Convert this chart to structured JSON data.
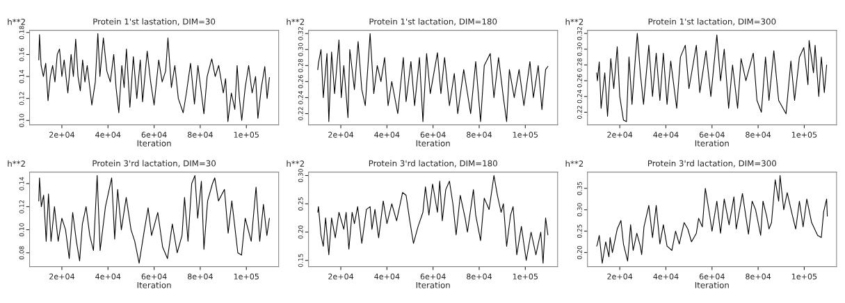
{
  "chart_data": [
    {
      "type": "line",
      "title": "Protein 1'st lastation, DIM=30",
      "ylabel": "h**2",
      "xlabel": "Iteration",
      "color": "#000000",
      "grid": false,
      "legend": false,
      "x": [
        10000,
        10300,
        11000,
        12000,
        13000,
        14000,
        15000,
        16000,
        17000,
        18000,
        19000,
        20000,
        21000,
        22600,
        24000,
        25000,
        26000,
        27000,
        28000,
        29000,
        30000,
        31000,
        33000,
        34500,
        35600,
        36500,
        38000,
        39500,
        41000,
        42500,
        43500,
        44700,
        46000,
        47000,
        48000,
        49500,
        51000,
        52500,
        54000,
        55000,
        57000,
        58500,
        60000,
        62000,
        63500,
        65000,
        66000,
        67500,
        69000,
        70500,
        72600,
        74000,
        75800,
        77500,
        79000,
        80500,
        81600,
        83000,
        85000,
        86500,
        88000,
        90000,
        91000,
        92000,
        93500,
        95000,
        96000,
        97000,
        98000,
        99500,
        101000,
        102500,
        104000,
        105000,
        106500,
        108000,
        109000,
        110000
      ],
      "values": [
        0.155,
        0.178,
        0.15,
        0.14,
        0.152,
        0.118,
        0.14,
        0.15,
        0.135,
        0.16,
        0.165,
        0.14,
        0.155,
        0.125,
        0.16,
        0.14,
        0.174,
        0.14,
        0.127,
        0.155,
        0.135,
        0.15,
        0.114,
        0.135,
        0.179,
        0.14,
        0.175,
        0.145,
        0.135,
        0.16,
        0.13,
        0.107,
        0.15,
        0.13,
        0.165,
        0.112,
        0.158,
        0.12,
        0.155,
        0.117,
        0.163,
        0.135,
        0.114,
        0.155,
        0.135,
        0.145,
        0.175,
        0.13,
        0.15,
        0.12,
        0.107,
        0.125,
        0.152,
        0.115,
        0.15,
        0.125,
        0.106,
        0.14,
        0.156,
        0.14,
        0.15,
        0.125,
        0.138,
        0.099,
        0.125,
        0.11,
        0.15,
        0.12,
        0.1,
        0.13,
        0.15,
        0.125,
        0.14,
        0.102,
        0.13,
        0.149,
        0.12,
        0.139
      ],
      "xlim": [
        6000,
        114000
      ],
      "xticks": [
        {
          "value": 20000,
          "label": "2e+04"
        },
        {
          "value": 40000,
          "label": "4e+04"
        },
        {
          "value": 60000,
          "label": "6e+04"
        },
        {
          "value": 80000,
          "label": "8e+04"
        },
        {
          "value": 100000,
          "label": "1e+05"
        }
      ],
      "ylim": [
        0.096,
        0.182
      ],
      "yticks": [
        {
          "value": 0.1,
          "label": "0.10"
        },
        {
          "value": 0.12,
          "label": "0.12"
        },
        {
          "value": 0.14,
          "label": "0.14"
        },
        {
          "value": 0.16,
          "label": "0.16"
        },
        {
          "value": 0.18,
          "label": "0.18"
        }
      ]
    },
    {
      "type": "line",
      "title": "Protein 1'st lactation, DIM=180",
      "ylabel": "h**2",
      "xlabel": "Iteration",
      "color": "#000000",
      "grid": false,
      "legend": false,
      "x": [
        10000,
        10300,
        11400,
        12400,
        14000,
        14800,
        16000,
        17300,
        19200,
        20200,
        21300,
        23100,
        23900,
        25900,
        27500,
        29100,
        30600,
        32700,
        34300,
        35800,
        37400,
        39000,
        40500,
        42100,
        44700,
        47100,
        48300,
        50400,
        52000,
        54100,
        55600,
        57200,
        58800,
        61900,
        63400,
        65000,
        67100,
        69200,
        70700,
        73300,
        76300,
        78500,
        80600,
        82200,
        84800,
        86400,
        88400,
        90500,
        91900,
        93100,
        95200,
        97300,
        99400,
        102000,
        103500,
        105600,
        107200,
        108800,
        109800
      ],
      "values": [
        0.275,
        0.283,
        0.3,
        0.24,
        0.295,
        0.21,
        0.297,
        0.245,
        0.312,
        0.24,
        0.28,
        0.215,
        0.3,
        0.25,
        0.31,
        0.25,
        0.23,
        0.32,
        0.245,
        0.28,
        0.26,
        0.29,
        0.23,
        0.26,
        0.22,
        0.29,
        0.235,
        0.285,
        0.23,
        0.29,
        0.21,
        0.295,
        0.245,
        0.296,
        0.245,
        0.29,
        0.23,
        0.27,
        0.22,
        0.275,
        0.22,
        0.285,
        0.21,
        0.28,
        0.295,
        0.24,
        0.29,
        0.24,
        0.21,
        0.275,
        0.24,
        0.275,
        0.23,
        0.285,
        0.24,
        0.28,
        0.225,
        0.275,
        0.279
      ],
      "xlim": [
        6000,
        114000
      ],
      "xticks": [
        {
          "value": 20000,
          "label": "2e+04"
        },
        {
          "value": 40000,
          "label": "4e+04"
        },
        {
          "value": 60000,
          "label": "6e+04"
        },
        {
          "value": 80000,
          "label": "8e+04"
        },
        {
          "value": 100000,
          "label": "1e+05"
        }
      ],
      "ylim": [
        0.206,
        0.324
      ],
      "yticks": [
        {
          "value": 0.22,
          "label": "0.22"
        },
        {
          "value": 0.24,
          "label": "0.24"
        },
        {
          "value": 0.26,
          "label": "0.26"
        },
        {
          "value": 0.28,
          "label": "0.28"
        },
        {
          "value": 0.3,
          "label": "0.30"
        },
        {
          "value": 0.32,
          "label": "0.32"
        }
      ]
    },
    {
      "type": "line",
      "title": "Protein 1'st lactation, DIM=300",
      "ylabel": "h**2",
      "xlabel": "Iteration",
      "color": "#000000",
      "grid": false,
      "legend": false,
      "x": [
        10000,
        10300,
        11100,
        11900,
        13500,
        14700,
        16100,
        17400,
        18900,
        20000,
        21600,
        22900,
        24000,
        25300,
        26800,
        27600,
        28900,
        30300,
        32600,
        34200,
        35800,
        37400,
        38900,
        40500,
        42100,
        44700,
        46300,
        48400,
        50000,
        53200,
        54700,
        57400,
        59500,
        62100,
        63700,
        65300,
        67200,
        68900,
        71100,
        72600,
        74700,
        77900,
        79500,
        81400,
        83200,
        84700,
        86800,
        88900,
        92100,
        94200,
        95800,
        97900,
        99800,
        101600,
        102100,
        104000,
        104700,
        106300,
        107400,
        108700,
        109700
      ],
      "values": [
        0.27,
        0.26,
        0.284,
        0.225,
        0.27,
        0.215,
        0.288,
        0.25,
        0.303,
        0.24,
        0.21,
        0.208,
        0.29,
        0.23,
        0.29,
        0.32,
        0.27,
        0.23,
        0.305,
        0.24,
        0.295,
        0.235,
        0.295,
        0.23,
        0.285,
        0.225,
        0.29,
        0.305,
        0.25,
        0.305,
        0.245,
        0.298,
        0.24,
        0.318,
        0.26,
        0.3,
        0.225,
        0.28,
        0.225,
        0.288,
        0.26,
        0.295,
        0.235,
        0.22,
        0.29,
        0.235,
        0.298,
        0.235,
        0.218,
        0.285,
        0.235,
        0.29,
        0.302,
        0.255,
        0.311,
        0.27,
        0.305,
        0.24,
        0.29,
        0.245,
        0.28
      ],
      "xlim": [
        6000,
        114000
      ],
      "xticks": [
        {
          "value": 20000,
          "label": "2e+04"
        },
        {
          "value": 40000,
          "label": "4e+04"
        },
        {
          "value": 60000,
          "label": "6e+04"
        },
        {
          "value": 80000,
          "label": "8e+04"
        },
        {
          "value": 100000,
          "label": "1e+05"
        }
      ],
      "ylim": [
        0.204,
        0.324
      ],
      "yticks": [
        {
          "value": 0.22,
          "label": "0.22"
        },
        {
          "value": 0.24,
          "label": "0.24"
        },
        {
          "value": 0.26,
          "label": "0.26"
        },
        {
          "value": 0.28,
          "label": "0.28"
        },
        {
          "value": 0.3,
          "label": "0.30"
        },
        {
          "value": 0.32,
          "label": "0.32"
        }
      ]
    },
    {
      "type": "line",
      "title": "Protein 3'rd lactation, DIM=30",
      "ylabel": "h**2",
      "xlabel": "Iteration",
      "color": "#000000",
      "grid": false,
      "legend": false,
      "x": [
        10000,
        10300,
        11100,
        12100,
        13200,
        14200,
        15300,
        16800,
        18400,
        20000,
        21600,
        23200,
        24700,
        26300,
        27700,
        28900,
        30500,
        32100,
        33700,
        35300,
        36600,
        38900,
        41600,
        42900,
        44200,
        45800,
        47900,
        50000,
        51600,
        53500,
        55800,
        57400,
        58900,
        61600,
        63700,
        65800,
        67900,
        70000,
        72100,
        73200,
        74700,
        76300,
        77700,
        78900,
        80500,
        81600,
        83200,
        85300,
        86300,
        87900,
        90500,
        92100,
        93700,
        96300,
        97900,
        99500,
        102100,
        104200,
        105800,
        107400,
        108900,
        110000
      ],
      "values": [
        0.125,
        0.145,
        0.12,
        0.13,
        0.09,
        0.131,
        0.09,
        0.12,
        0.09,
        0.11,
        0.1,
        0.075,
        0.115,
        0.09,
        0.073,
        0.105,
        0.12,
        0.095,
        0.082,
        0.147,
        0.082,
        0.12,
        0.145,
        0.092,
        0.135,
        0.1,
        0.128,
        0.1,
        0.09,
        0.071,
        0.1,
        0.119,
        0.095,
        0.115,
        0.085,
        0.075,
        0.105,
        0.08,
        0.095,
        0.128,
        0.09,
        0.14,
        0.147,
        0.11,
        0.142,
        0.083,
        0.125,
        0.14,
        0.145,
        0.125,
        0.135,
        0.097,
        0.125,
        0.08,
        0.078,
        0.11,
        0.09,
        0.137,
        0.09,
        0.122,
        0.095,
        0.11
      ],
      "xlim": [
        6000,
        114000
      ],
      "xticks": [
        {
          "value": 20000,
          "label": "2e+04"
        },
        {
          "value": 40000,
          "label": "4e+04"
        },
        {
          "value": 60000,
          "label": "6e+04"
        },
        {
          "value": 80000,
          "label": "8e+04"
        },
        {
          "value": 100000,
          "label": "1e+05"
        }
      ],
      "ylim": [
        0.068,
        0.15
      ],
      "yticks": [
        {
          "value": 0.08,
          "label": "0.08"
        },
        {
          "value": 0.1,
          "label": "0.10"
        },
        {
          "value": 0.12,
          "label": "0.12"
        },
        {
          "value": 0.14,
          "label": "0.14"
        }
      ]
    },
    {
      "type": "line",
      "title": "Protein 3'rd lactation, DIM=180",
      "ylabel": "h**2",
      "xlabel": "Iteration",
      "color": "#000000",
      "grid": false,
      "legend": false,
      "x": [
        10000,
        10300,
        11400,
        12400,
        13400,
        14800,
        16000,
        17600,
        19200,
        21300,
        22300,
        23500,
        24900,
        25900,
        27300,
        29100,
        31100,
        32700,
        33500,
        34800,
        36400,
        38400,
        40000,
        42100,
        44200,
        46800,
        48300,
        49900,
        51500,
        53500,
        55600,
        56700,
        58200,
        59800,
        61900,
        62900,
        64000,
        65500,
        67100,
        68600,
        70000,
        71800,
        73900,
        74900,
        77500,
        78500,
        80600,
        82200,
        84300,
        86400,
        87900,
        89500,
        90500,
        91900,
        93600,
        94700,
        96300,
        98300,
        100400,
        102500,
        104600,
        106700,
        107700,
        108800,
        109800
      ],
      "values": [
        0.235,
        0.245,
        0.195,
        0.175,
        0.225,
        0.16,
        0.225,
        0.19,
        0.235,
        0.205,
        0.235,
        0.17,
        0.235,
        0.215,
        0.245,
        0.18,
        0.24,
        0.245,
        0.205,
        0.24,
        0.19,
        0.255,
        0.215,
        0.25,
        0.22,
        0.27,
        0.265,
        0.22,
        0.18,
        0.21,
        0.235,
        0.28,
        0.23,
        0.285,
        0.235,
        0.29,
        0.22,
        0.275,
        0.29,
        0.25,
        0.195,
        0.265,
        0.225,
        0.2,
        0.275,
        0.23,
        0.185,
        0.26,
        0.24,
        0.3,
        0.265,
        0.235,
        0.25,
        0.175,
        0.23,
        0.245,
        0.16,
        0.21,
        0.15,
        0.2,
        0.16,
        0.2,
        0.145,
        0.225,
        0.195
      ],
      "xlim": [
        6000,
        114000
      ],
      "xticks": [
        {
          "value": 20000,
          "label": "2e+04"
        },
        {
          "value": 40000,
          "label": "4e+04"
        },
        {
          "value": 60000,
          "label": "6e+04"
        },
        {
          "value": 80000,
          "label": "8e+04"
        },
        {
          "value": 100000,
          "label": "1e+05"
        }
      ],
      "ylim": [
        0.139,
        0.306
      ],
      "yticks": [
        {
          "value": 0.15,
          "label": "0.15"
        },
        {
          "value": 0.2,
          "label": "0.20"
        },
        {
          "value": 0.25,
          "label": "0.25"
        },
        {
          "value": 0.3,
          "label": "0.30"
        }
      ]
    },
    {
      "type": "line",
      "title": "Protein 3'rd lactation, DIM=300",
      "ylabel": "h**2",
      "xlabel": "Iteration",
      "color": "#000000",
      "grid": false,
      "legend": false,
      "x": [
        10000,
        10300,
        11100,
        12400,
        13900,
        15300,
        15800,
        16800,
        18900,
        20500,
        21600,
        23400,
        24700,
        25800,
        27400,
        28900,
        29500,
        30500,
        32600,
        34200,
        35800,
        37400,
        38900,
        40500,
        42600,
        44200,
        45800,
        47900,
        49500,
        51100,
        53200,
        54200,
        55800,
        57100,
        58900,
        60000,
        62100,
        63700,
        65300,
        67400,
        69500,
        70500,
        73200,
        75800,
        77400,
        78900,
        81100,
        82100,
        83700,
        84700,
        85800,
        87400,
        88900,
        89500,
        91100,
        92600,
        94700,
        96300,
        97900,
        99500,
        101100,
        103200,
        105800,
        107400,
        108400,
        109700,
        110000
      ],
      "values": [
        0.215,
        0.22,
        0.24,
        0.175,
        0.225,
        0.19,
        0.235,
        0.2,
        0.255,
        0.275,
        0.22,
        0.18,
        0.265,
        0.205,
        0.245,
        0.215,
        0.195,
        0.26,
        0.31,
        0.235,
        0.31,
        0.22,
        0.265,
        0.215,
        0.205,
        0.25,
        0.22,
        0.27,
        0.255,
        0.225,
        0.245,
        0.28,
        0.26,
        0.35,
        0.29,
        0.25,
        0.32,
        0.245,
        0.325,
        0.265,
        0.33,
        0.255,
        0.338,
        0.243,
        0.32,
        0.3,
        0.24,
        0.32,
        0.285,
        0.255,
        0.27,
        0.37,
        0.32,
        0.38,
        0.3,
        0.34,
        0.29,
        0.255,
        0.32,
        0.26,
        0.325,
        0.27,
        0.24,
        0.235,
        0.295,
        0.325,
        0.285
      ],
      "xlim": [
        6000,
        114000
      ],
      "xticks": [
        {
          "value": 20000,
          "label": "2e+04"
        },
        {
          "value": 40000,
          "label": "4e+04"
        },
        {
          "value": 60000,
          "label": "6e+04"
        },
        {
          "value": 80000,
          "label": "8e+04"
        },
        {
          "value": 100000,
          "label": "1e+05"
        }
      ],
      "ylim": [
        0.167,
        0.388
      ],
      "yticks": [
        {
          "value": 0.2,
          "label": "0.20"
        },
        {
          "value": 0.25,
          "label": "0.25"
        },
        {
          "value": 0.3,
          "label": "0.30"
        },
        {
          "value": 0.35,
          "label": "0.35"
        }
      ]
    }
  ]
}
